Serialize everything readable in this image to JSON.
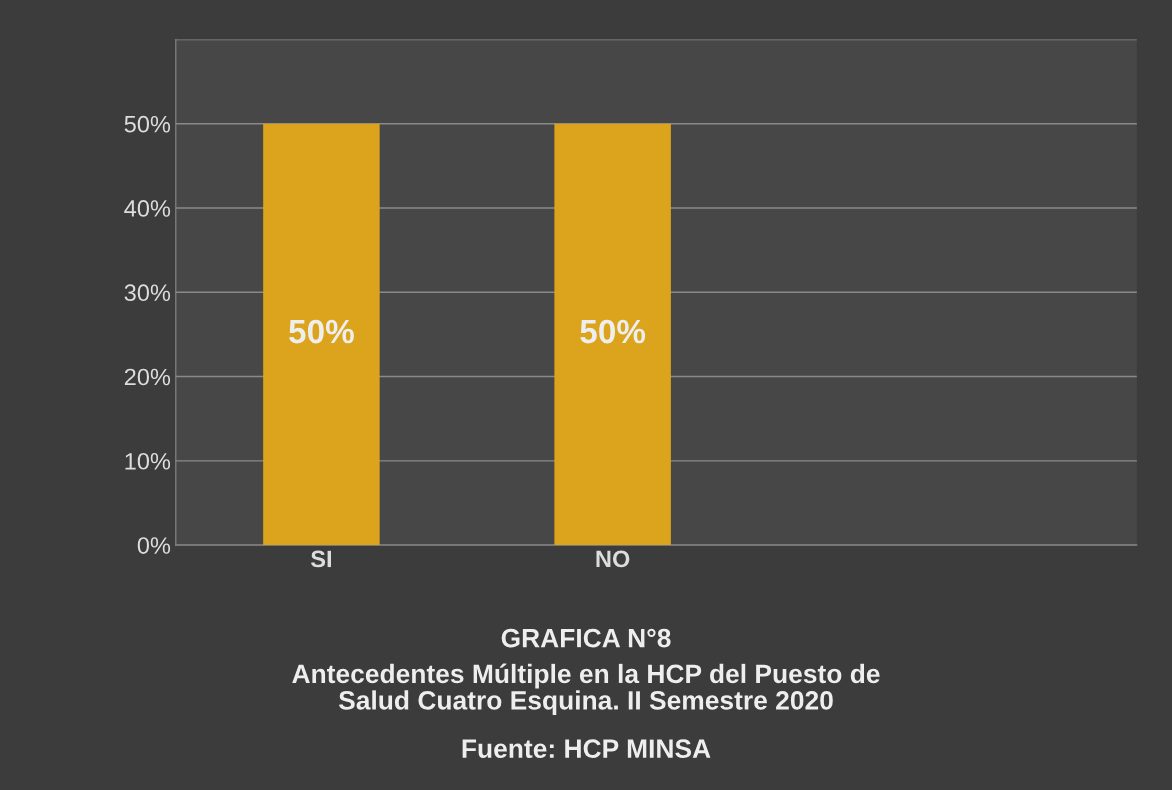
{
  "chart_data": {
    "type": "bar",
    "title": "GRAFICA N°8",
    "subtitle": "Antecedentes Múltiple en la HCP del Puesto de\nSalud Cuatro Esquina. II Semestre 2020",
    "annotations": [
      "Fuente: HCP MINSA"
    ],
    "categories": [
      "SI",
      "NO"
    ],
    "values": [
      50,
      50
    ],
    "color": "#dba41c",
    "value_labels": [
      "50%",
      "50%"
    ],
    "ylim": [
      0,
      60
    ],
    "yticks": [
      {
        "value": 0,
        "label": "0%"
      },
      {
        "value": 10,
        "label": "10%"
      },
      {
        "value": 20,
        "label": "20%"
      },
      {
        "value": 30,
        "label": "30%"
      },
      {
        "value": 40,
        "label": "40%"
      },
      {
        "value": 50,
        "label": "50%"
      },
      {
        "value": 60,
        "label": null
      }
    ],
    "grid": "y"
  }
}
